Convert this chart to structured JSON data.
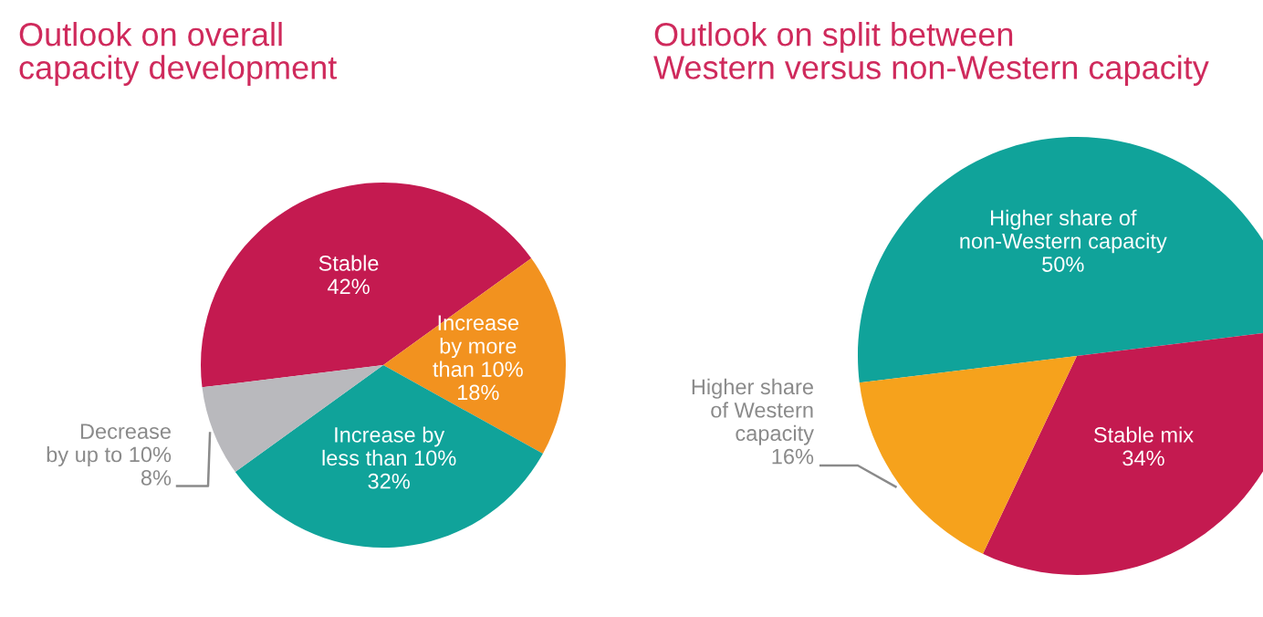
{
  "chart_data": [
    {
      "type": "pie",
      "title": "Outlook on overall\ncapacity development",
      "categories": [
        "Stable",
        "Increase\nby more\nthan 10%",
        "Increase by\nless than 10%",
        "Decrease\nby up to 10%"
      ],
      "values": [
        42,
        18,
        32,
        8
      ],
      "value_labels": [
        "42%",
        "18%",
        "32%",
        "8%"
      ],
      "colors": [
        "#c41a50",
        "#f2921f",
        "#10a39a",
        "#b9b9bd"
      ],
      "data_labels": true,
      "legend": false
    },
    {
      "type": "pie",
      "title": "Outlook on split between\nWestern versus non-Western capacity",
      "categories": [
        "Higher share of\nnon-Western capacity",
        "Stable mix",
        "Higher share\nof Western\ncapacity"
      ],
      "values": [
        50,
        34,
        16
      ],
      "value_labels": [
        "50%",
        "34%",
        "16%"
      ],
      "colors": [
        "#10a39a",
        "#c41a50",
        "#f6a21c"
      ],
      "data_labels": true,
      "legend": false
    }
  ]
}
